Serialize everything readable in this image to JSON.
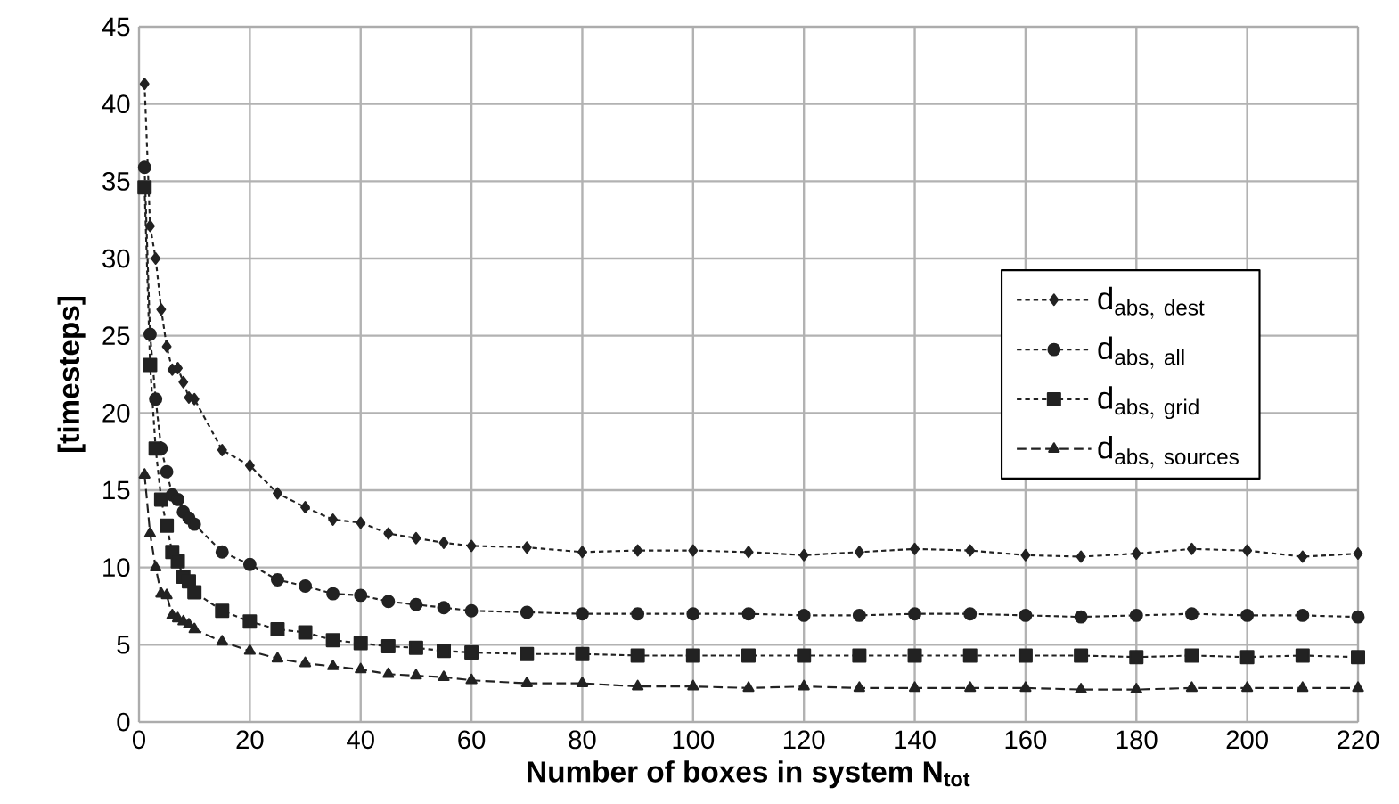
{
  "chart_data": {
    "type": "line",
    "xlabel": "Number of boxes in system N$_{tot}$",
    "ylabel": "[timesteps]",
    "x": [
      1,
      2,
      3,
      4,
      5,
      6,
      7,
      8,
      9,
      10,
      15,
      20,
      25,
      30,
      35,
      40,
      45,
      50,
      55,
      60,
      70,
      80,
      90,
      100,
      110,
      120,
      130,
      140,
      150,
      160,
      170,
      180,
      190,
      200,
      210,
      220
    ],
    "series": [
      {
        "name": "\\mathrm{d}_{\\mathrm{abs,\\ dest}}",
        "color": "#222222",
        "marker": "diamond",
        "line_style": "dotted",
        "values": [
          41.3,
          32.1,
          30.0,
          26.7,
          24.3,
          22.8,
          22.9,
          22.0,
          21.0,
          20.9,
          17.6,
          16.6,
          14.8,
          13.9,
          13.1,
          12.9,
          12.2,
          11.9,
          11.6,
          11.4,
          11.3,
          11.0,
          11.1,
          11.1,
          11.0,
          10.8,
          11.0,
          11.2,
          11.1,
          10.8,
          10.7,
          10.9,
          11.2,
          11.1,
          10.7,
          10.9
        ]
      },
      {
        "name": "\\mathrm{d}_{\\mathrm{abs,\\ all}}",
        "color": "#222222",
        "marker": "circle",
        "line_style": "dotted",
        "values": [
          35.9,
          25.1,
          20.9,
          17.7,
          16.2,
          14.7,
          14.4,
          13.6,
          13.2,
          12.8,
          11.0,
          10.2,
          9.2,
          8.8,
          8.3,
          8.2,
          7.8,
          7.6,
          7.4,
          7.2,
          7.1,
          7.0,
          7.0,
          7.0,
          7.0,
          6.9,
          6.9,
          7.0,
          7.0,
          6.9,
          6.8,
          6.9,
          7.0,
          6.9,
          6.9,
          6.8
        ]
      },
      {
        "name": "\\mathrm{d}_{\\mathrm{abs,\\ grid}}",
        "color": "#222222",
        "marker": "square",
        "line_style": "dotted",
        "values": [
          34.6,
          23.1,
          17.7,
          14.4,
          12.7,
          11.0,
          10.4,
          9.4,
          9.1,
          8.4,
          7.2,
          6.5,
          6.0,
          5.8,
          5.3,
          5.1,
          4.9,
          4.8,
          4.6,
          4.5,
          4.4,
          4.4,
          4.3,
          4.3,
          4.3,
          4.3,
          4.3,
          4.3,
          4.3,
          4.3,
          4.3,
          4.2,
          4.3,
          4.2,
          4.3,
          4.2
        ]
      },
      {
        "name": "\\mathrm{d}_{\\mathrm{abs,\\ sources}}",
        "color": "#222222",
        "marker": "triangle",
        "line_style": "dashed",
        "values": [
          16.0,
          12.2,
          10.0,
          8.3,
          8.2,
          6.9,
          6.7,
          6.5,
          6.3,
          6.0,
          5.2,
          4.6,
          4.1,
          3.8,
          3.6,
          3.4,
          3.1,
          3.0,
          2.9,
          2.7,
          2.5,
          2.5,
          2.3,
          2.3,
          2.2,
          2.3,
          2.2,
          2.2,
          2.2,
          2.2,
          2.1,
          2.1,
          2.2,
          2.2,
          2.2,
          2.2
        ]
      }
    ],
    "xlim": [
      0,
      220
    ],
    "xticks": [
      0,
      20,
      40,
      60,
      80,
      100,
      120,
      140,
      160,
      180,
      200,
      220
    ],
    "ylim": [
      0,
      45
    ],
    "yticks": [
      0,
      5,
      10,
      15,
      20,
      25,
      30,
      35,
      40,
      45
    ],
    "grid": true,
    "legend": "right"
  }
}
